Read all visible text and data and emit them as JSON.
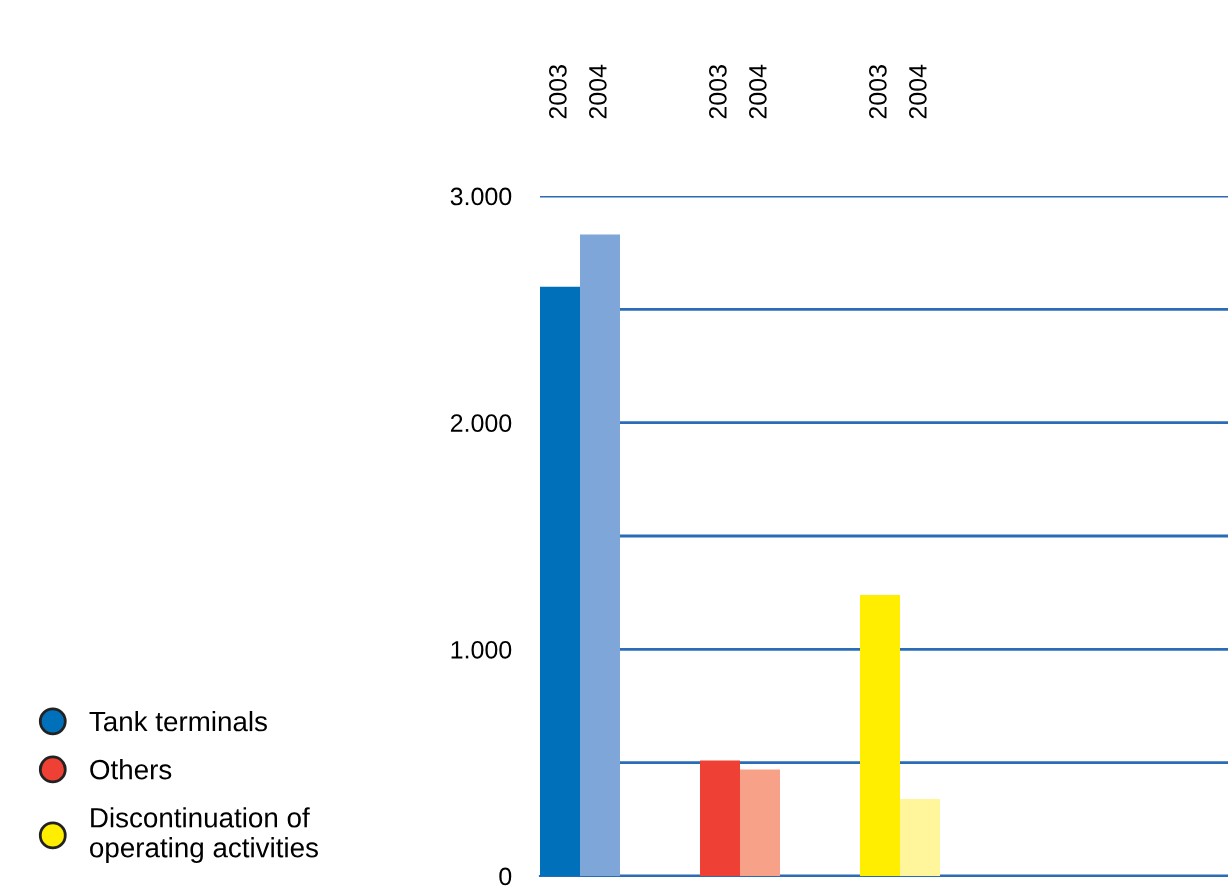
{
  "chart_data": {
    "type": "bar",
    "categories": [
      "2003",
      "2004",
      null,
      null,
      "2003",
      "2004",
      null,
      null,
      "2003",
      "2004"
    ],
    "series": [
      {
        "name": "Tank terminals",
        "colors": [
          "#0070bb",
          "#7ea6d8",
          null,
          null,
          null,
          null,
          null,
          null,
          null,
          null
        ],
        "values": [
          2600,
          2830,
          null,
          null,
          null,
          null,
          null,
          null,
          null,
          null
        ]
      },
      {
        "name": "Others",
        "colors": [
          null,
          null,
          null,
          null,
          "#ee4034",
          "#f6a188",
          null,
          null,
          null,
          null
        ],
        "values": [
          null,
          null,
          null,
          null,
          510,
          470,
          null,
          null,
          null,
          null
        ]
      },
      {
        "name": "Discontinuation of\noperating activities",
        "colors": [
          null,
          null,
          null,
          null,
          null,
          null,
          null,
          null,
          "#ffee00",
          "#fff59a"
        ],
        "values": [
          null,
          null,
          null,
          null,
          null,
          null,
          null,
          null,
          1240,
          340
        ]
      }
    ],
    "ylim": [
      0,
      3000
    ],
    "yticks": [
      {
        "value": 0,
        "label": "0"
      },
      {
        "value": 500,
        "label": null
      },
      {
        "value": 1000,
        "label": "1.000"
      },
      {
        "value": 1500,
        "label": null
      },
      {
        "value": 2000,
        "label": "2.000"
      },
      {
        "value": 2500,
        "label": null
      },
      {
        "value": 3000,
        "label": "3.000"
      }
    ],
    "grid": "y",
    "legend": "left"
  }
}
